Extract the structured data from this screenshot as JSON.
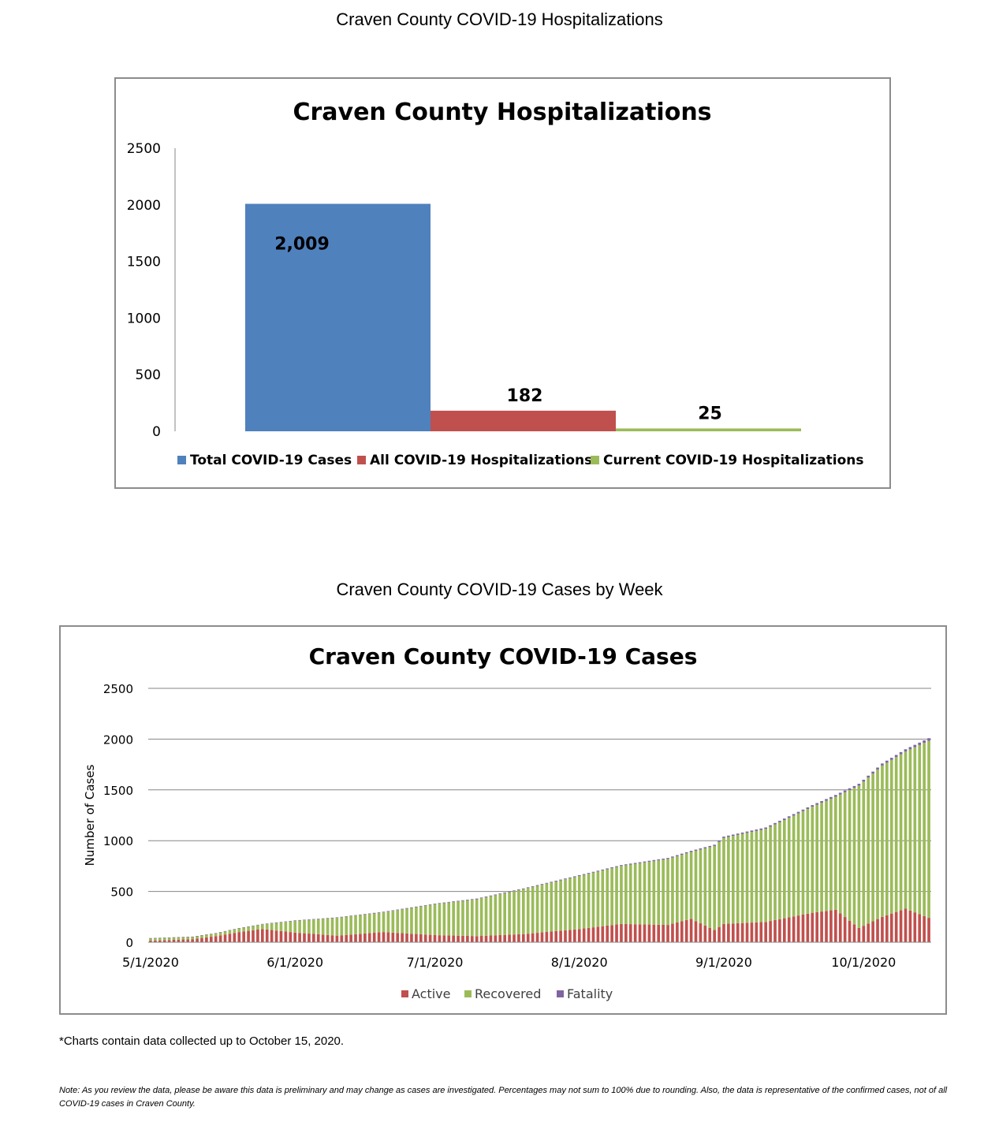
{
  "page": {
    "heading1": "Craven County COVID-19 Hospitalizations",
    "heading2": "Craven County COVID-19 Cases by Week",
    "footnote": "*Charts contain data collected up to October 15, 2020.",
    "note": "Note: As you review the data, please be aware this data is preliminary and may change as cases are investigated. Percentages may not sum to 100% due to rounding. Also, the data is representative of the confirmed cases, not of all COVID-19 cases in Craven County."
  },
  "chart_data": [
    {
      "type": "bar",
      "title": "Craven County Hospitalizations",
      "xlabel": "",
      "ylabel": "",
      "ylim": [
        0,
        2500
      ],
      "yticks": [
        0,
        500,
        1000,
        1500,
        2000,
        2500
      ],
      "grid": false,
      "legend": "bottom",
      "series": [
        {
          "name": "Total COVID-19 Cases",
          "values": [
            2009
          ],
          "label": "2,009",
          "color": "#4f81bd"
        },
        {
          "name": "All COVID-19 Hospitalizations",
          "values": [
            182
          ],
          "label": "182",
          "color": "#c0504d"
        },
        {
          "name": "Current COVID-19 Hospitalizations",
          "values": [
            25
          ],
          "label": "25",
          "color": "#9bbb59"
        }
      ]
    },
    {
      "type": "bar",
      "stacked": true,
      "title": "Craven County COVID-19 Cases",
      "xlabel": "",
      "ylabel": "Number of Cases",
      "ylim": [
        0,
        2500
      ],
      "yticks": [
        0,
        500,
        1000,
        1500,
        2000,
        2500
      ],
      "grid": true,
      "legend": "bottom",
      "xlim": [
        "2020-05-01",
        "2020-10-15"
      ],
      "xticks": [
        "5/1/2020",
        "6/1/2020",
        "7/1/2020",
        "8/1/2020",
        "9/1/2020",
        "10/1/2020"
      ],
      "anchor_points": [
        {
          "x": "2020-05-01",
          "total": 40,
          "active": 15,
          "fatality": 0
        },
        {
          "x": "2020-05-10",
          "total": 55,
          "active": 30,
          "fatality": 0
        },
        {
          "x": "2020-05-15",
          "total": 90,
          "active": 60,
          "fatality": 2
        },
        {
          "x": "2020-05-20",
          "total": 140,
          "active": 100,
          "fatality": 3
        },
        {
          "x": "2020-05-25",
          "total": 180,
          "active": 130,
          "fatality": 4
        },
        {
          "x": "2020-06-01",
          "total": 215,
          "active": 95,
          "fatality": 5
        },
        {
          "x": "2020-06-10",
          "total": 245,
          "active": 65,
          "fatality": 5
        },
        {
          "x": "2020-06-20",
          "total": 300,
          "active": 100,
          "fatality": 6
        },
        {
          "x": "2020-07-01",
          "total": 380,
          "active": 70,
          "fatality": 6
        },
        {
          "x": "2020-07-10",
          "total": 430,
          "active": 60,
          "fatality": 7
        },
        {
          "x": "2020-07-20",
          "total": 530,
          "active": 80,
          "fatality": 7
        },
        {
          "x": "2020-08-01",
          "total": 660,
          "active": 130,
          "fatality": 8
        },
        {
          "x": "2020-08-10",
          "total": 760,
          "active": 180,
          "fatality": 9
        },
        {
          "x": "2020-08-20",
          "total": 830,
          "active": 170,
          "fatality": 10
        },
        {
          "x": "2020-08-25",
          "total": 900,
          "active": 230,
          "fatality": 11
        },
        {
          "x": "2020-08-30",
          "total": 960,
          "active": 120,
          "fatality": 12
        },
        {
          "x": "2020-09-01",
          "total": 1040,
          "active": 180,
          "fatality": 13
        },
        {
          "x": "2020-09-10",
          "total": 1130,
          "active": 200,
          "fatality": 14
        },
        {
          "x": "2020-09-20",
          "total": 1350,
          "active": 290,
          "fatality": 16
        },
        {
          "x": "2020-09-25",
          "total": 1450,
          "active": 320,
          "fatality": 17
        },
        {
          "x": "2020-09-30",
          "total": 1560,
          "active": 140,
          "fatality": 18
        },
        {
          "x": "2020-10-05",
          "total": 1760,
          "active": 250,
          "fatality": 20
        },
        {
          "x": "2020-10-10",
          "total": 1900,
          "active": 330,
          "fatality": 22
        },
        {
          "x": "2020-10-15",
          "total": 2009,
          "active": 240,
          "fatality": 25
        }
      ],
      "series": [
        {
          "name": "Active",
          "color": "#c0504d"
        },
        {
          "name": "Recovered",
          "color": "#9bbb59"
        },
        {
          "name": "Fatality",
          "color": "#8064a2"
        }
      ]
    }
  ]
}
